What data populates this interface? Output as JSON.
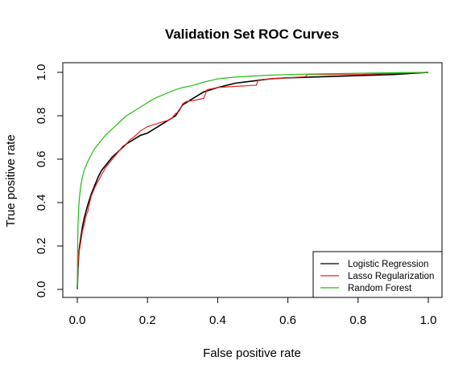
{
  "chart_data": {
    "type": "line",
    "title": "Validation Set ROC Curves",
    "xlabel": "False positive rate",
    "ylabel": "True positive rate",
    "xlim": [
      0,
      1
    ],
    "ylim": [
      0,
      1
    ],
    "xticks": [
      "0.0",
      "0.2",
      "0.4",
      "0.6",
      "0.8",
      "1.0"
    ],
    "yticks": [
      "0.0",
      "0.2",
      "0.4",
      "0.6",
      "0.8",
      "1.0"
    ],
    "grid": false,
    "legend_position": "bottom-right",
    "series": [
      {
        "name": "Logistic Regression",
        "color": "#000000",
        "x": [
          0,
          0.002,
          0.005,
          0.01,
          0.015,
          0.02,
          0.03,
          0.04,
          0.05,
          0.06,
          0.07,
          0.08,
          0.1,
          0.12,
          0.14,
          0.16,
          0.18,
          0.2,
          0.22,
          0.24,
          0.26,
          0.28,
          0.3,
          0.32,
          0.34,
          0.36,
          0.38,
          0.4,
          0.45,
          0.5,
          0.55,
          0.6,
          0.7,
          0.8,
          0.9,
          1.0
        ],
        "y": [
          0,
          0.1,
          0.18,
          0.24,
          0.29,
          0.33,
          0.39,
          0.44,
          0.48,
          0.52,
          0.55,
          0.57,
          0.61,
          0.64,
          0.67,
          0.69,
          0.71,
          0.72,
          0.74,
          0.76,
          0.78,
          0.8,
          0.85,
          0.87,
          0.89,
          0.91,
          0.92,
          0.93,
          0.95,
          0.96,
          0.97,
          0.975,
          0.98,
          0.985,
          0.99,
          1.0
        ]
      },
      {
        "name": "Lasso Regularization",
        "color": "#e8231f",
        "x": [
          0,
          0.002,
          0.005,
          0.01,
          0.015,
          0.02,
          0.025,
          0.03,
          0.035,
          0.04,
          0.05,
          0.06,
          0.07,
          0.08,
          0.09,
          0.1,
          0.11,
          0.12,
          0.13,
          0.14,
          0.15,
          0.16,
          0.18,
          0.2,
          0.22,
          0.24,
          0.26,
          0.27,
          0.28,
          0.29,
          0.3,
          0.31,
          0.33,
          0.36,
          0.365,
          0.37,
          0.4,
          0.45,
          0.5,
          0.51,
          0.515,
          0.55,
          0.6,
          0.65,
          0.655,
          0.7,
          0.8,
          0.9,
          1.0
        ],
        "y": [
          0,
          0.12,
          0.17,
          0.22,
          0.27,
          0.3,
          0.34,
          0.36,
          0.4,
          0.43,
          0.47,
          0.5,
          0.53,
          0.56,
          0.58,
          0.6,
          0.62,
          0.64,
          0.66,
          0.67,
          0.69,
          0.7,
          0.73,
          0.75,
          0.76,
          0.77,
          0.78,
          0.79,
          0.81,
          0.82,
          0.855,
          0.865,
          0.87,
          0.88,
          0.9,
          0.92,
          0.93,
          0.935,
          0.94,
          0.94,
          0.965,
          0.97,
          0.975,
          0.98,
          0.99,
          0.99,
          0.99,
          0.995,
          1.0
        ]
      },
      {
        "name": "Random Forest",
        "color": "#22bb11",
        "x": [
          0,
          0.001,
          0.002,
          0.004,
          0.006,
          0.008,
          0.01,
          0.015,
          0.02,
          0.03,
          0.04,
          0.05,
          0.06,
          0.07,
          0.08,
          0.1,
          0.12,
          0.14,
          0.16,
          0.18,
          0.2,
          0.22,
          0.25,
          0.28,
          0.3,
          0.33,
          0.36,
          0.4,
          0.45,
          0.5,
          0.55,
          0.6,
          0.7,
          0.8,
          0.9,
          1.0
        ],
        "y": [
          0,
          0.2,
          0.3,
          0.37,
          0.42,
          0.45,
          0.48,
          0.52,
          0.55,
          0.59,
          0.62,
          0.65,
          0.67,
          0.69,
          0.71,
          0.74,
          0.77,
          0.8,
          0.82,
          0.84,
          0.86,
          0.88,
          0.9,
          0.92,
          0.93,
          0.94,
          0.955,
          0.97,
          0.978,
          0.983,
          0.987,
          0.99,
          0.993,
          0.996,
          0.998,
          1.0
        ]
      }
    ]
  }
}
